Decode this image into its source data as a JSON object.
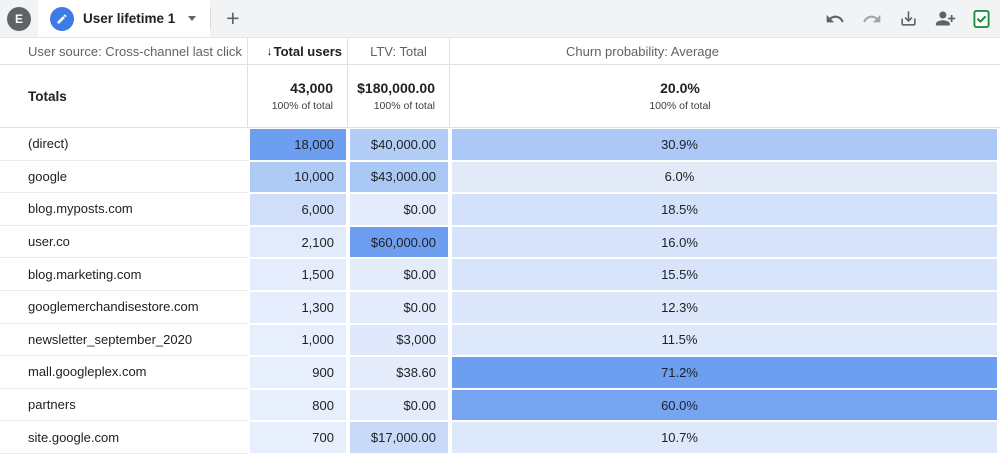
{
  "topbar": {
    "avatar_letter": "E",
    "tab_label": "User lifetime 1",
    "plus_label": "+",
    "icons": [
      "edit-pencil-icon",
      "undo-icon",
      "redo-icon",
      "download-icon",
      "person-add-icon",
      "export-check-icon"
    ]
  },
  "colors": {
    "topbar_bg": "#f1f3f4",
    "tab_badge_blue": "#3d7ce5",
    "icon_grey": "#5f6368",
    "icon_disabled_grey": "#a1a5aa",
    "export_green": "#1e8e3e",
    "heat_max_blue": "#6d9ef0",
    "heat_min_blue": "#e8effc"
  },
  "table": {
    "dimension_header": "User source: Cross-channel last click",
    "headers": {
      "users_sort_icon": "↓",
      "users": "Total users",
      "ltv": "LTV: Total",
      "churn": "Churn probability: Average"
    },
    "totals": {
      "label": "Totals",
      "users": "43,000",
      "users_sub": "100% of total",
      "ltv": "$180,000.00",
      "ltv_sub": "100% of total",
      "churn": "20.0%",
      "churn_sub": "100% of total"
    },
    "rows": [
      {
        "source": "(direct)",
        "users": "18,000",
        "ltv": "$40,000.00",
        "churn": "30.9%",
        "users_bg": "#6d9eef",
        "ltv_bg": "#b2cdf6",
        "churn_bg": "#abc8f6"
      },
      {
        "source": "google",
        "users": "10,000",
        "ltv": "$43,000.00",
        "churn": "6.0%",
        "users_bg": "#aecbf6",
        "ltv_bg": "#aac8f5",
        "churn_bg": "#e2e9f7"
      },
      {
        "source": "blog.myposts.com",
        "users": "6,000",
        "ltv": "$0.00",
        "churn": "18.5%",
        "users_bg": "#d0defa",
        "ltv_bg": "#e4ecfb",
        "churn_bg": "#d3e1fa"
      },
      {
        "source": "user.co",
        "users": "2,100",
        "ltv": "$60,000.00",
        "churn": "16.0%",
        "users_bg": "#e2ebfc",
        "ltv_bg": "#6d9ef0",
        "churn_bg": "#d6e3fa"
      },
      {
        "source": "blog.marketing.com",
        "users": "1,500",
        "ltv": "$0.00",
        "churn": "15.5%",
        "users_bg": "#e5edfc",
        "ltv_bg": "#e4ecfb",
        "churn_bg": "#d7e4fa"
      },
      {
        "source": "googlemerchandisestore.com",
        "users": "1,300",
        "ltv": "$0.00",
        "churn": "12.3%",
        "users_bg": "#e6edfc",
        "ltv_bg": "#e4ecfb",
        "churn_bg": "#dce7fb"
      },
      {
        "source": "newsletter_september_2020",
        "users": "1,000",
        "ltv": "$3,000",
        "churn": "11.5%",
        "users_bg": "#e7eefc",
        "ltv_bg": "#dfe9fb",
        "churn_bg": "#dde8fb"
      },
      {
        "source": "mall.googleplex.com",
        "users": "900",
        "ltv": "$38.60",
        "churn": "71.2%",
        "users_bg": "#e7eefc",
        "ltv_bg": "#e4ecfb",
        "churn_bg": "#6d9ef0"
      },
      {
        "source": "partners",
        "users": "800",
        "ltv": "$0.00",
        "churn": "60.0%",
        "users_bg": "#e8effc",
        "ltv_bg": "#e4ecfb",
        "churn_bg": "#78a5f2"
      },
      {
        "source": "site.google.com",
        "users": "700",
        "ltv": "$17,000.00",
        "churn": "10.7%",
        "users_bg": "#e8effc",
        "ltv_bg": "#c8daf8",
        "churn_bg": "#dee8fb"
      }
    ]
  }
}
